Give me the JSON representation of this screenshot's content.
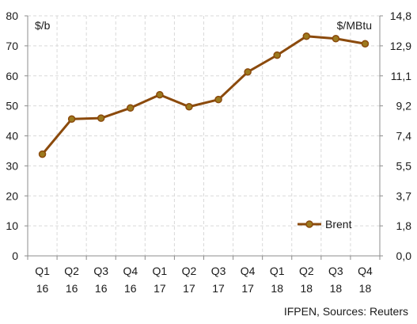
{
  "chart_data": {
    "type": "line",
    "categories": [
      "Q1 16",
      "Q2 16",
      "Q3 16",
      "Q4 16",
      "Q1 17",
      "Q2 17",
      "Q3 17",
      "Q4 17",
      "Q1 18",
      "Q2 18",
      "Q3 18",
      "Q4 18"
    ],
    "category_lines": [
      [
        "Q1",
        "16"
      ],
      [
        "Q2",
        "16"
      ],
      [
        "Q3",
        "16"
      ],
      [
        "Q4",
        "16"
      ],
      [
        "Q1",
        "17"
      ],
      [
        "Q2",
        "17"
      ],
      [
        "Q3",
        "17"
      ],
      [
        "Q4",
        "17"
      ],
      [
        "Q1",
        "18"
      ],
      [
        "Q2",
        "18"
      ],
      [
        "Q3",
        "18"
      ],
      [
        "Q4",
        "18"
      ]
    ],
    "series": [
      {
        "name": "Brent",
        "color": "#8B4A0C",
        "marker_color": "#9C7A1E",
        "values": [
          33.9,
          45.6,
          45.9,
          49.3,
          53.7,
          49.7,
          52.1,
          61.3,
          66.9,
          73.2,
          72.4,
          70.7
        ]
      }
    ],
    "left_axis": {
      "unit_label": "$/b",
      "ylim": [
        0,
        80
      ],
      "ticks": [
        "0",
        "10",
        "20",
        "30",
        "40",
        "50",
        "60",
        "70",
        "80"
      ]
    },
    "right_axis": {
      "unit_label": "$/MBtu",
      "ylim": [
        0,
        14.8
      ],
      "ticks": [
        "0,0",
        "1,8",
        "3,7",
        "5,5",
        "7,4",
        "9,2",
        "11,1",
        "12,9",
        "14,8"
      ]
    },
    "grid": true,
    "grid_color": "#d9d9d9",
    "legend_position": "bottom-right",
    "source": "IFPEN, Sources: Reuters"
  }
}
